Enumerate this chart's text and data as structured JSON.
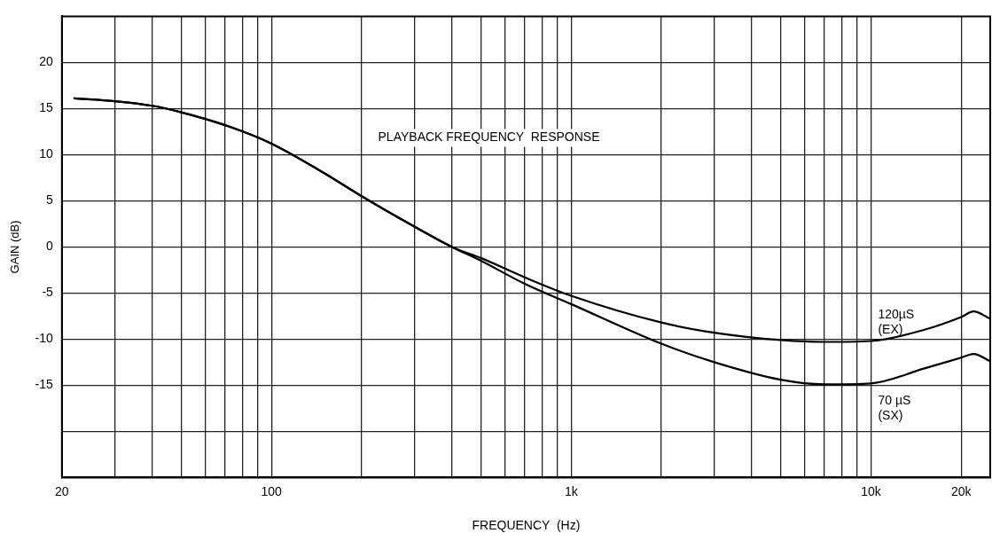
{
  "chart_data": {
    "type": "line",
    "xlabel": "FREQUENCY  (Hz)",
    "ylabel": "GAIN (dB)",
    "annotations": [
      "PLAYBACK FREQUENCY  RESPONSE"
    ],
    "log": "x",
    "grid": true,
    "marker": "none",
    "line_style": "solid",
    "legend": false,
    "xlim": [
      20,
      25000
    ],
    "ylim": [
      -25,
      25
    ],
    "xticks": [
      20,
      {
        "value": 30,
        "label": null
      },
      {
        "value": 40,
        "label": null
      },
      {
        "value": 50,
        "label": null
      },
      {
        "value": 60,
        "label": null
      },
      {
        "value": 70,
        "label": null
      },
      {
        "value": 80,
        "label": null
      },
      {
        "value": 90,
        "label": null
      },
      100,
      {
        "value": 200,
        "label": null
      },
      {
        "value": 300,
        "label": null
      },
      {
        "value": 400,
        "label": null
      },
      {
        "value": 500,
        "label": null
      },
      {
        "value": 600,
        "label": null
      },
      {
        "value": 700,
        "label": null
      },
      {
        "value": 800,
        "label": null
      },
      {
        "value": 900,
        "label": null
      },
      {
        "value": 1000,
        "label": "1k"
      },
      {
        "value": 2000,
        "label": null
      },
      {
        "value": 3000,
        "label": null
      },
      {
        "value": 4000,
        "label": null
      },
      {
        "value": 5000,
        "label": null
      },
      {
        "value": 6000,
        "label": null
      },
      {
        "value": 7000,
        "label": null
      },
      {
        "value": 8000,
        "label": null
      },
      {
        "value": 9000,
        "label": null
      },
      {
        "value": 10000,
        "label": "10k"
      },
      {
        "value": 20000,
        "label": "20k"
      }
    ],
    "yticks": [
      {
        "value": -20,
        "label": null
      },
      -15,
      -10,
      -5,
      0,
      5,
      10,
      15,
      20
    ],
    "x": [
      22,
      30,
      40,
      50,
      70,
      100,
      150,
      200,
      300,
      400,
      500,
      700,
      1000,
      2000,
      3000,
      5000,
      7000,
      10000,
      15000,
      20000,
      22000,
      25000
    ],
    "series": [
      {
        "name": "120µS (EX)",
        "color": "#000000",
        "values": [
          16.1,
          15.8,
          15.3,
          14.6,
          13.2,
          11.2,
          8,
          5.5,
          2.2,
          0,
          -1.2,
          -3.3,
          -5.3,
          -8.2,
          -9.3,
          -10.1,
          -10.3,
          -10.2,
          -9,
          -7.6,
          -7,
          -7.8
        ]
      },
      {
        "name": "70 µS (SX)",
        "color": "#000000",
        "values": [
          16.1,
          15.8,
          15.3,
          14.6,
          13.2,
          11.2,
          8,
          5.5,
          2.2,
          0,
          -1.5,
          -4,
          -6.2,
          -10.5,
          -12.5,
          -14.4,
          -14.9,
          -14.8,
          -13.2,
          -12,
          -11.6,
          -12.4
        ]
      }
    ]
  }
}
